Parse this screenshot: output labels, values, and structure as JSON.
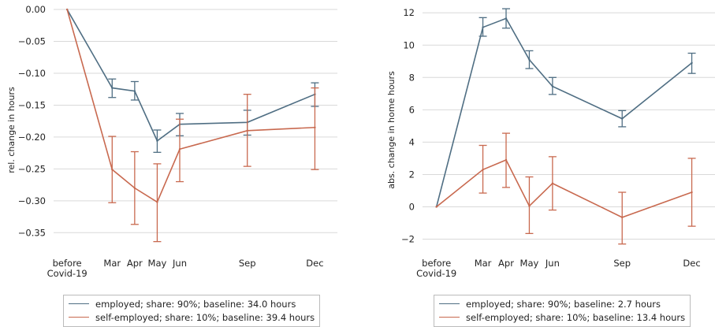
{
  "chart_data": [
    {
      "type": "line",
      "ylabel": "rel. change in hours",
      "xlabel": "",
      "x_ticks": [
        {
          "x": 0,
          "lines": [
            "before",
            "Covid-19"
          ]
        },
        {
          "x": 2,
          "lines": [
            "Mar"
          ]
        },
        {
          "x": 3,
          "lines": [
            "Apr"
          ]
        },
        {
          "x": 4,
          "lines": [
            "May"
          ]
        },
        {
          "x": 5,
          "lines": [
            "Jun"
          ]
        },
        {
          "x": 8,
          "lines": [
            "Sep"
          ]
        },
        {
          "x": 11,
          "lines": [
            "Dec"
          ]
        }
      ],
      "xlim": [
        -0.6,
        12.0
      ],
      "ylim": [
        -0.383,
        0.005
      ],
      "y_ticks": [
        0.0,
        -0.05,
        -0.1,
        -0.15,
        -0.2,
        -0.25,
        -0.3,
        -0.35
      ],
      "y_tick_labels": [
        "0.00",
        "−0.05",
        "−0.10",
        "−0.15",
        "−0.20",
        "−0.25",
        "−0.30",
        "−0.35"
      ],
      "grid": "y",
      "legend_position": "below",
      "series": [
        {
          "name": "employed; share: 90%; baseline: 34.0 hours",
          "color": "#4f6e83",
          "x": [
            0,
            2,
            3,
            4,
            5,
            8,
            11
          ],
          "y": [
            0.0,
            -0.123,
            -0.128,
            -0.206,
            -0.18,
            -0.177,
            -0.133
          ],
          "err_low": [
            0.0,
            -0.138,
            -0.142,
            -0.224,
            -0.198,
            -0.197,
            -0.152
          ],
          "err_high": [
            0.0,
            -0.109,
            -0.113,
            -0.189,
            -0.163,
            -0.158,
            -0.115
          ]
        },
        {
          "name": "self-employed; share: 10%; baseline: 39.4 hours",
          "color": "#c8694f",
          "x": [
            0,
            2,
            3,
            4,
            5,
            8,
            11
          ],
          "y": [
            0.0,
            -0.251,
            -0.28,
            -0.302,
            -0.219,
            -0.19,
            -0.185
          ],
          "err_low": [
            0.0,
            -0.303,
            -0.337,
            -0.364,
            -0.27,
            -0.246,
            -0.251
          ],
          "err_high": [
            0.0,
            -0.199,
            -0.223,
            -0.242,
            -0.172,
            -0.133,
            -0.123
          ]
        }
      ]
    },
    {
      "type": "line",
      "ylabel": "abs. change in home hours",
      "xlabel": "",
      "x_ticks": [
        {
          "x": 0,
          "lines": [
            "before",
            "Covid-19"
          ]
        },
        {
          "x": 2,
          "lines": [
            "Mar"
          ]
        },
        {
          "x": 3,
          "lines": [
            "Apr"
          ]
        },
        {
          "x": 4,
          "lines": [
            "May"
          ]
        },
        {
          "x": 5,
          "lines": [
            "Jun"
          ]
        },
        {
          "x": 8,
          "lines": [
            "Sep"
          ]
        },
        {
          "x": 11,
          "lines": [
            "Dec"
          ]
        }
      ],
      "xlim": [
        -0.6,
        12.0
      ],
      "ylim": [
        -2.9,
        12.4
      ],
      "y_ticks": [
        -2,
        0,
        2,
        4,
        6,
        8,
        10,
        12
      ],
      "y_tick_labels": [
        "−2",
        "0",
        "2",
        "4",
        "6",
        "8",
        "10",
        "12"
      ],
      "grid": "y",
      "legend_position": "below",
      "series": [
        {
          "name": "employed; share: 90%; baseline: 2.7 hours",
          "color": "#4f6e83",
          "x": [
            0,
            2,
            3,
            4,
            5,
            8,
            11
          ],
          "y": [
            0.0,
            11.1,
            11.65,
            9.1,
            7.45,
            5.45,
            8.9
          ],
          "err_low": [
            0.0,
            10.55,
            11.05,
            8.55,
            6.95,
            4.95,
            8.25
          ],
          "err_high": [
            0.0,
            11.7,
            12.25,
            9.65,
            8.0,
            5.95,
            9.5
          ]
        },
        {
          "name": "self-employed; share: 10%; baseline: 13.4 hours",
          "color": "#c8694f",
          "x": [
            0,
            2,
            3,
            4,
            5,
            8,
            11
          ],
          "y": [
            0.0,
            2.3,
            2.9,
            0.05,
            1.45,
            -0.65,
            0.9
          ],
          "err_low": [
            0.0,
            0.85,
            1.2,
            -1.65,
            -0.2,
            -2.3,
            -1.2
          ],
          "err_high": [
            0.0,
            3.8,
            4.55,
            1.85,
            3.1,
            0.9,
            3.0
          ]
        }
      ]
    }
  ]
}
